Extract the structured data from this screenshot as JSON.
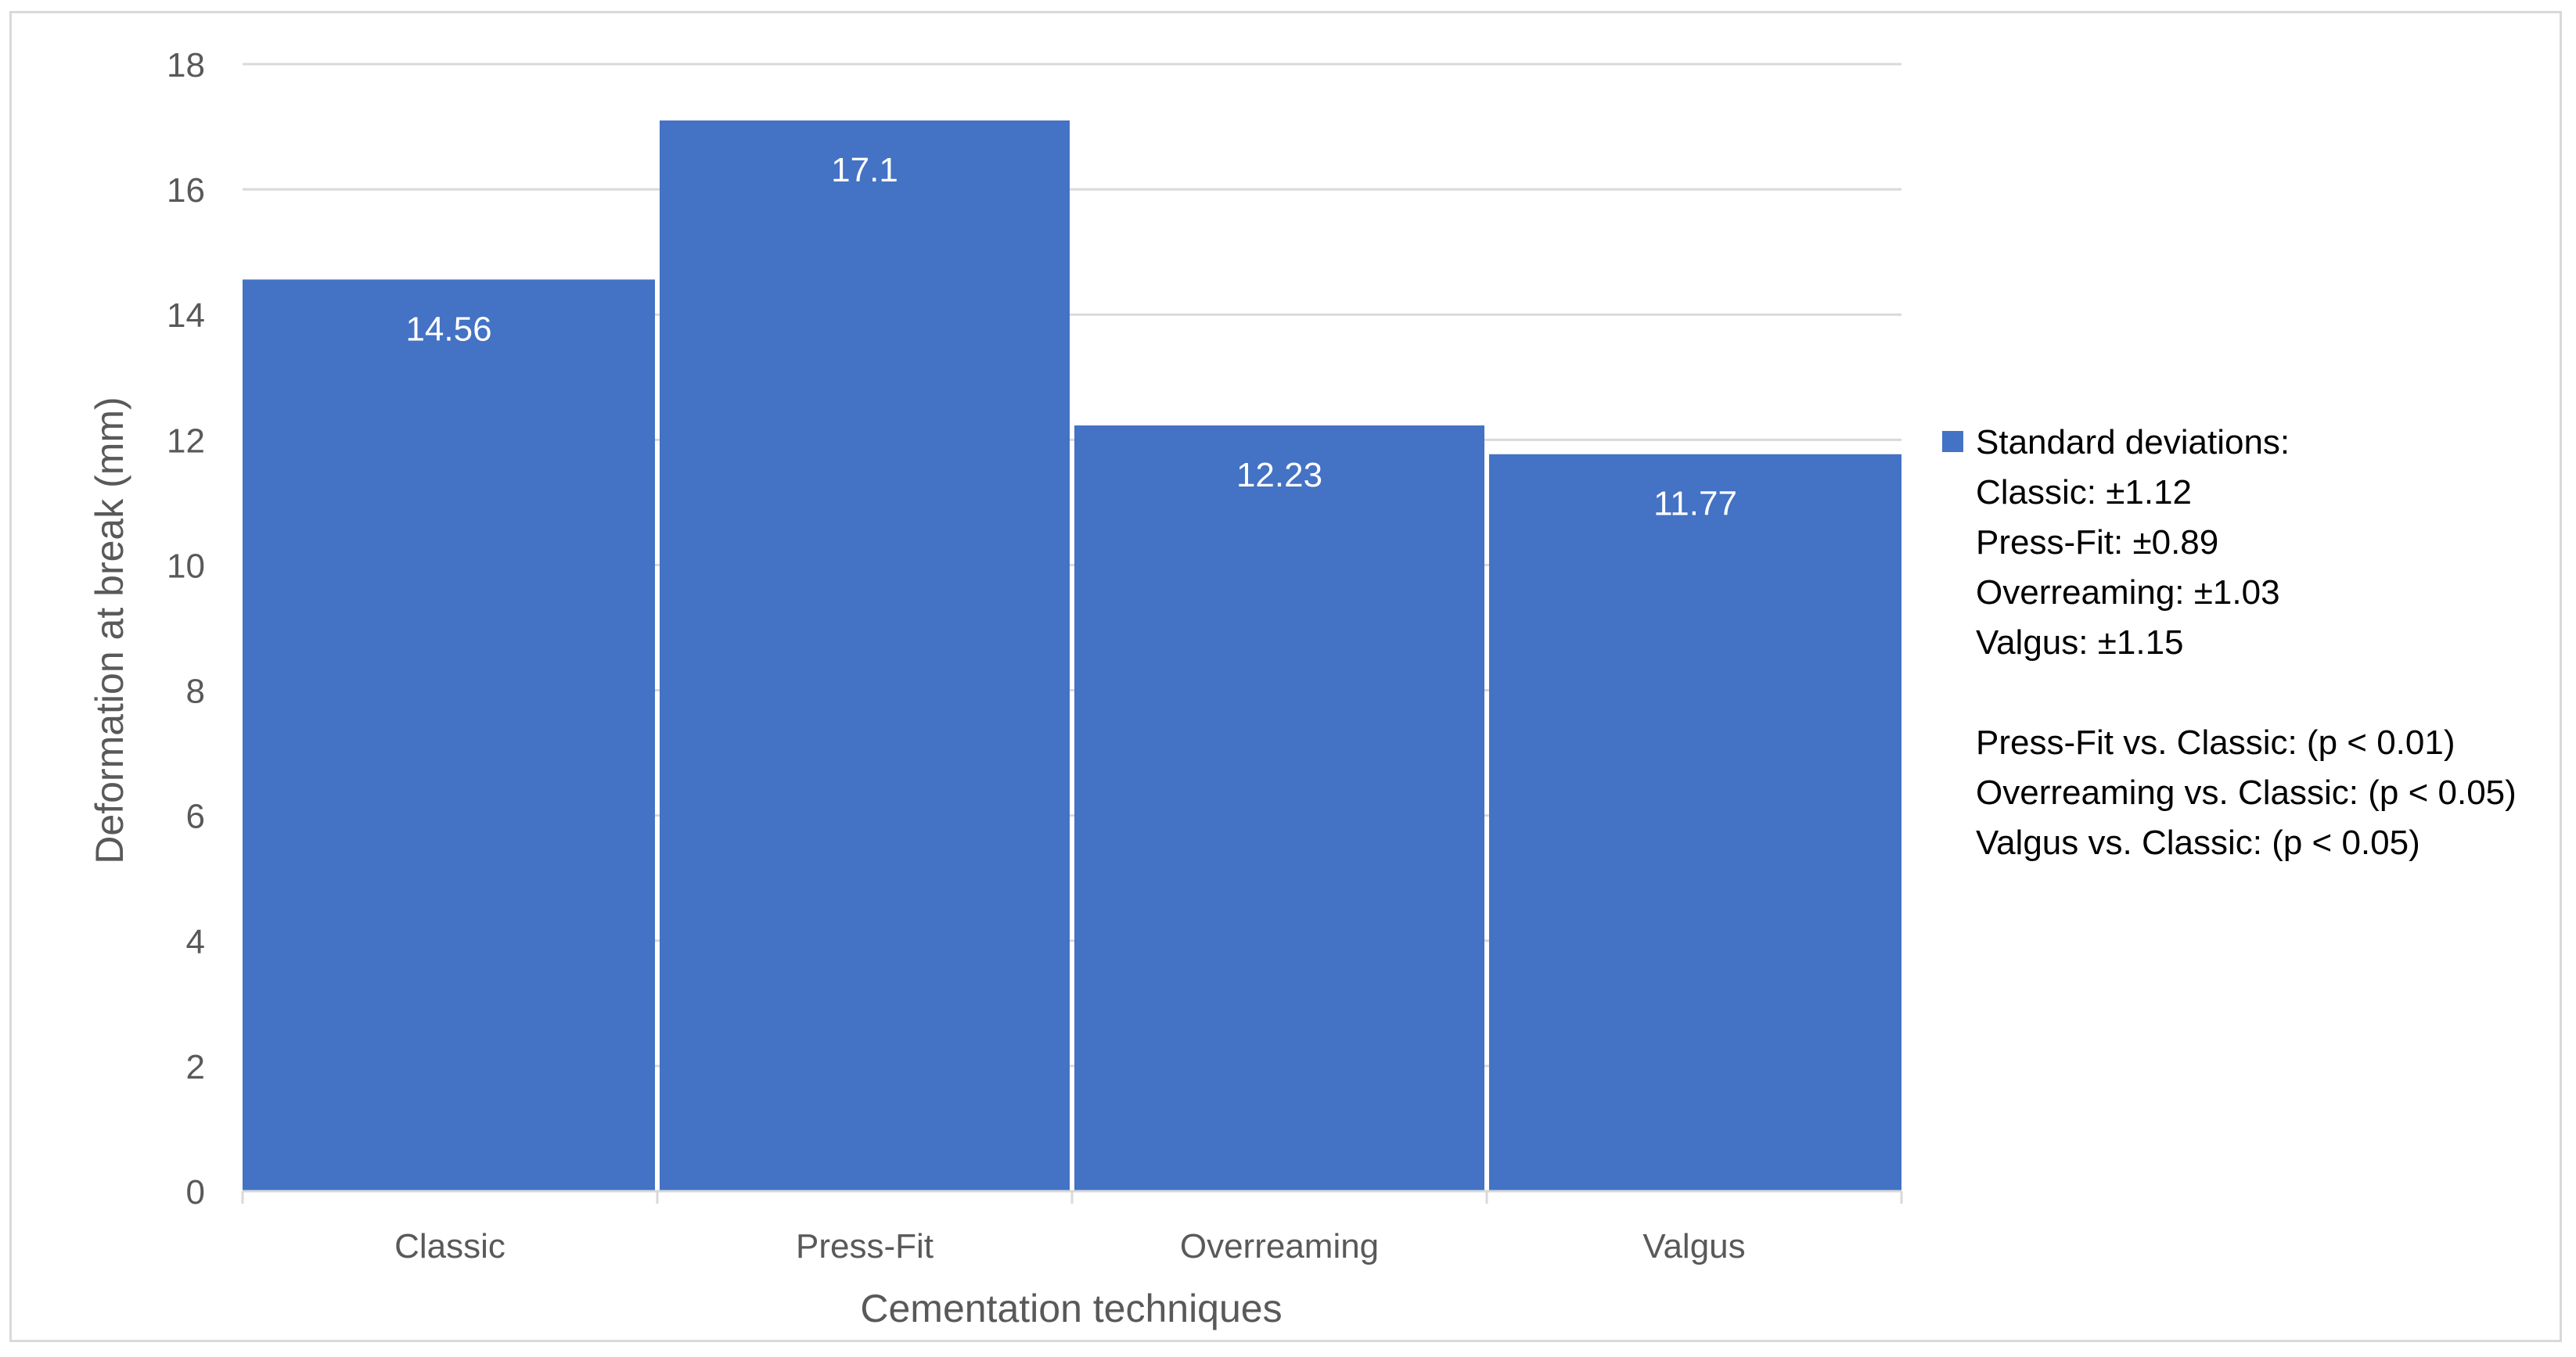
{
  "chart_data": {
    "type": "bar",
    "title": "",
    "xlabel": "Cementation techniques",
    "ylabel": "Deformation at break (mm)",
    "ylim": [
      0,
      18
    ],
    "yticks": [
      0,
      2,
      4,
      6,
      8,
      10,
      12,
      14,
      16,
      18
    ],
    "grid": true,
    "categories": [
      "Classic",
      "Press-Fit",
      "Overreaming",
      "Valgus"
    ],
    "series": [
      {
        "name": "Standard deviations:",
        "values": [
          14.56,
          17.1,
          12.23,
          11.77
        ],
        "data_labels": [
          "14.56",
          "17.1",
          "12.23",
          "11.77"
        ],
        "color": "#4472C4"
      }
    ],
    "legend_position": "right",
    "legend_lines": [
      "Classic: ±1.12",
      "Press-Fit: ±0.89",
      "Overreaming: ±1.03",
      "Valgus: ±1.15",
      "",
      "Press-Fit vs. Classic: (p < 0.01)",
      "Overreaming vs. Classic: (p < 0.05)",
      "Valgus vs. Classic: (p < 0.05)"
    ],
    "colors": {
      "bar": "#4472C4",
      "gridline": "#d9d9d9",
      "axis_text": "#595959",
      "frame": "#d9d9d9"
    }
  }
}
